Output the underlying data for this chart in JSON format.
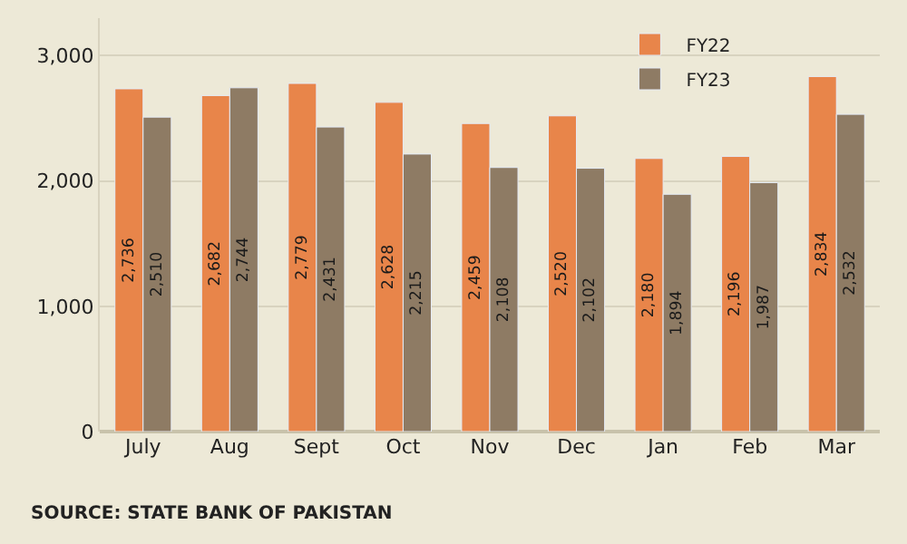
{
  "chart_data": {
    "type": "bar",
    "categories": [
      "July",
      "Aug",
      "Sept",
      "Oct",
      "Nov",
      "Dec",
      "Jan",
      "Feb",
      "Mar"
    ],
    "series": [
      {
        "name": "FY22",
        "color": "#e8854a",
        "values": [
          2736,
          2682,
          2779,
          2628,
          2459,
          2520,
          2180,
          2196,
          2834
        ],
        "value_labels": [
          "2,736",
          "2,682",
          "2,779",
          "2,628",
          "2,459",
          "2,520",
          "2,180",
          "2,196",
          "2,834"
        ]
      },
      {
        "name": "FY23",
        "color": "#8e7b64",
        "values": [
          2510,
          2744,
          2431,
          2215,
          2108,
          2102,
          1894,
          1987,
          2532
        ],
        "value_labels": [
          "2,510",
          "2,744",
          "2,431",
          "2,215",
          "2,108",
          "2,102",
          "1,894",
          "1,987",
          "2,532"
        ]
      }
    ],
    "ylim": [
      0,
      3300
    ],
    "yticks": [
      {
        "value": 0,
        "label": "0"
      },
      {
        "value": 1000,
        "label": "1,000"
      },
      {
        "value": 2000,
        "label": "2,000"
      },
      {
        "value": 3000,
        "label": "3,000"
      }
    ],
    "grid": "y",
    "legend": "top right",
    "annotations": [
      "SOURCE: STATE BANK OF PAKISTAN"
    ]
  }
}
